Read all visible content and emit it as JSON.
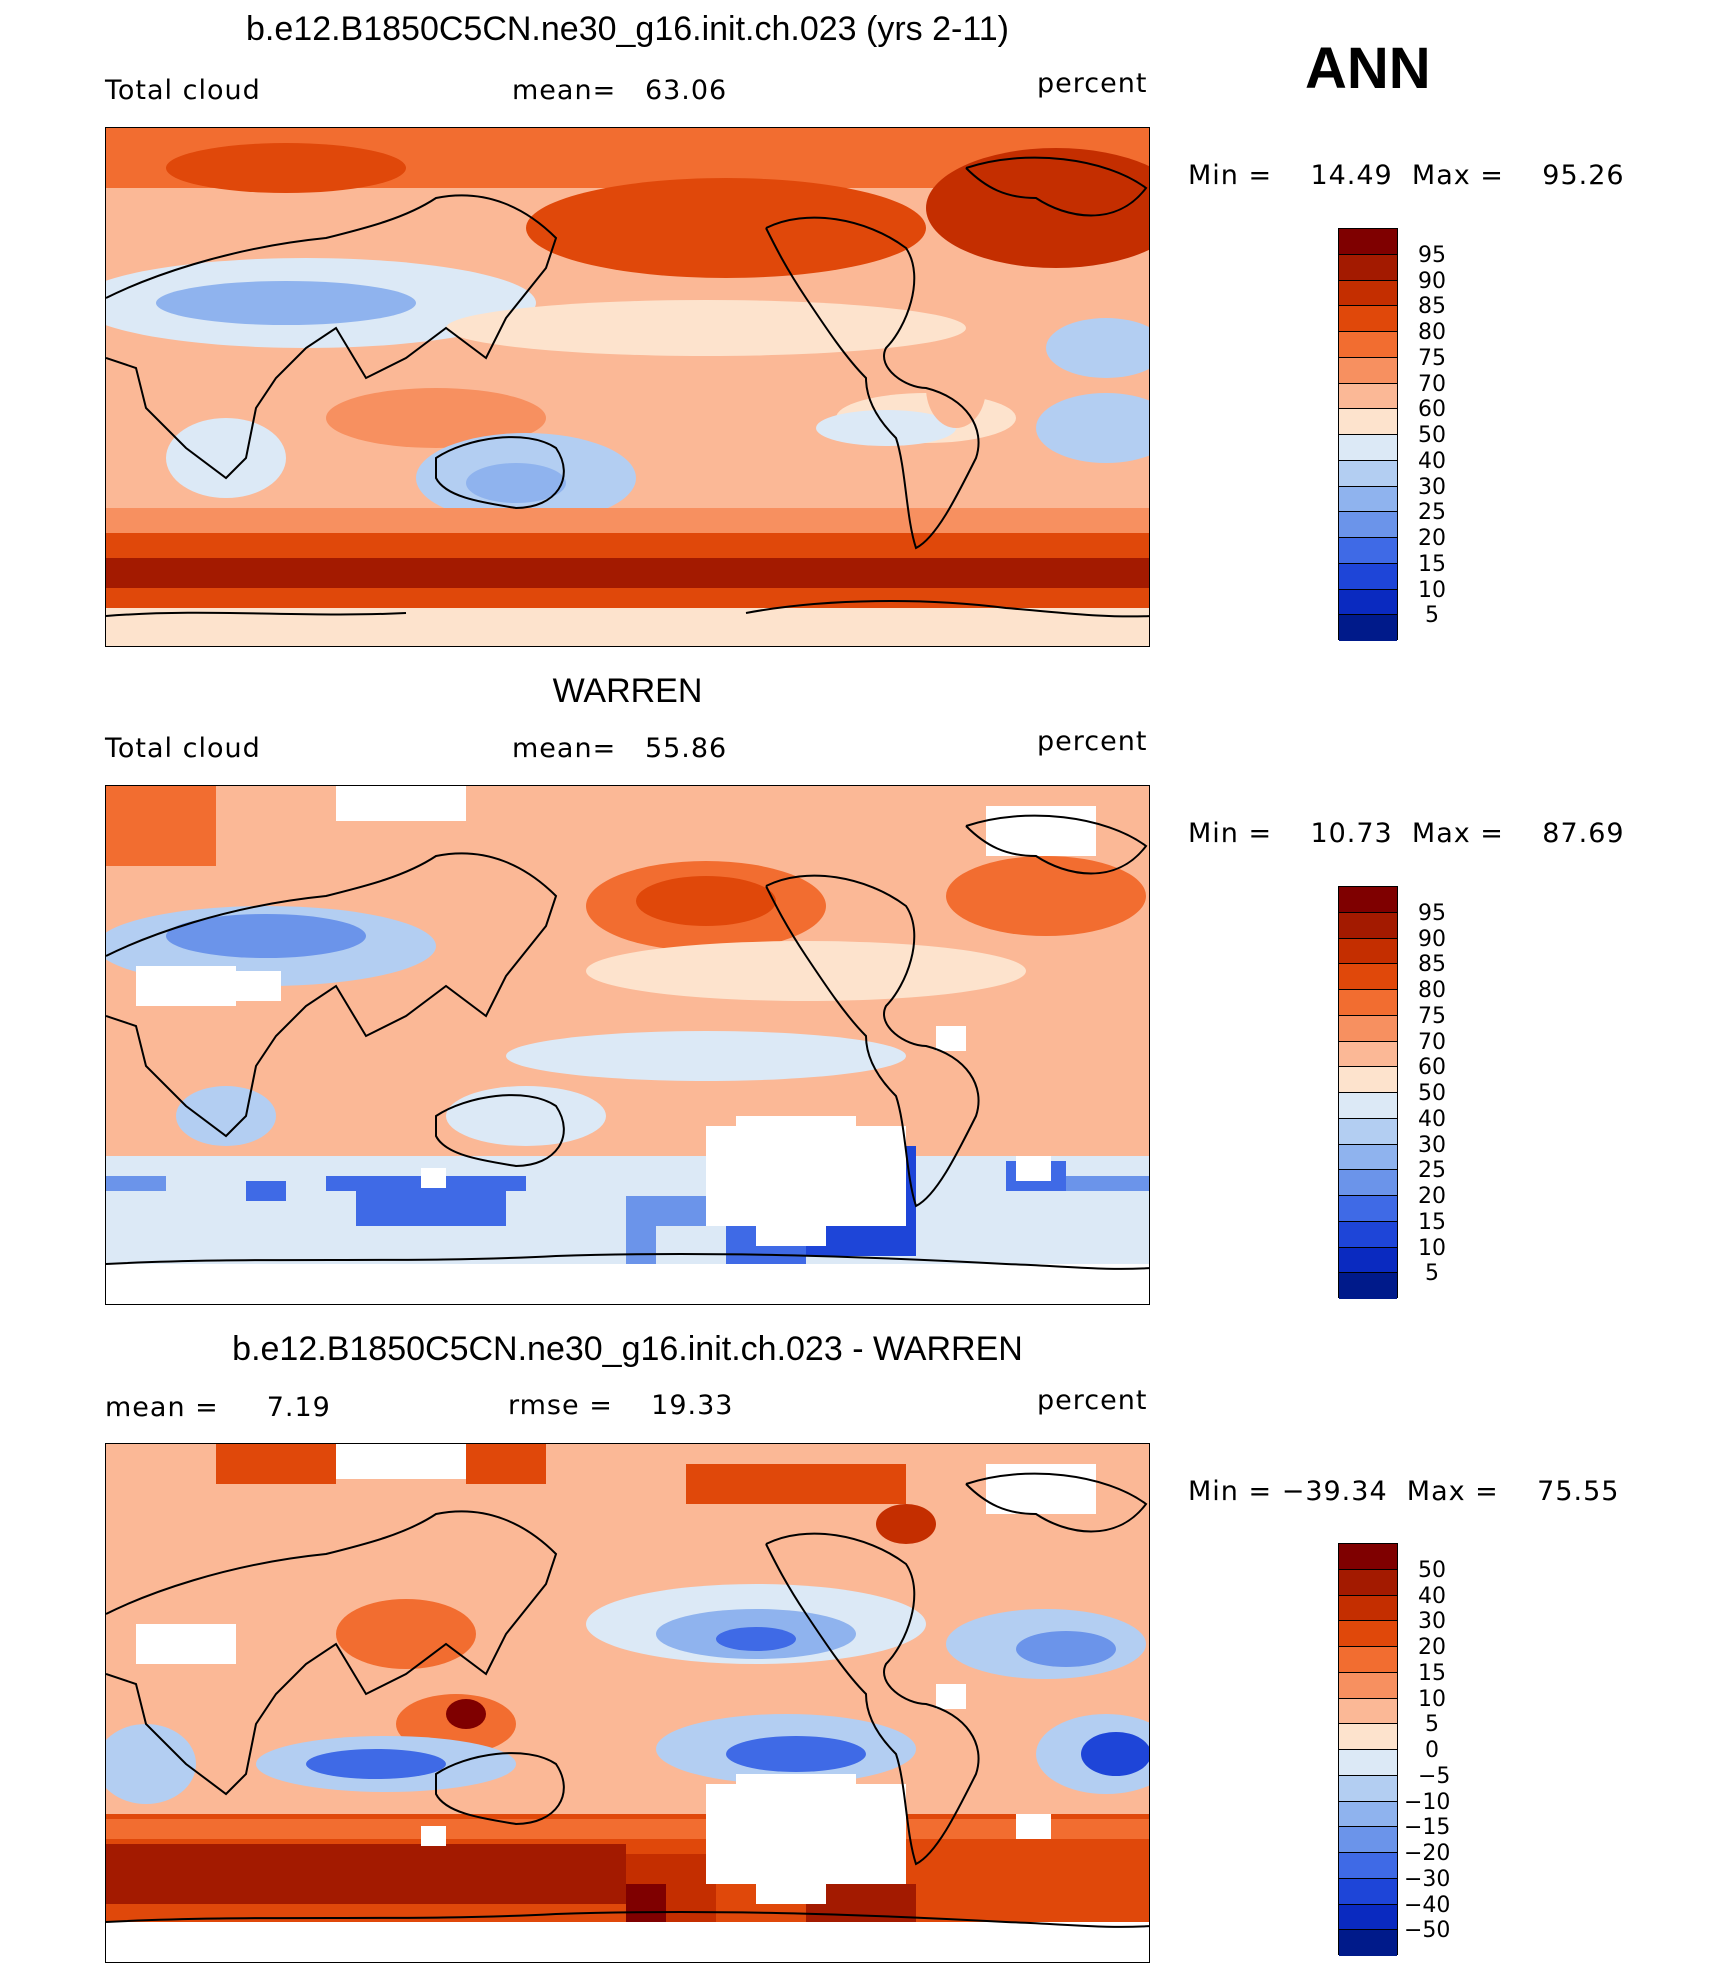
{
  "season": "ANN",
  "panels": [
    {
      "id": "model",
      "title": "b.e12.B1850C5CN.ne30_g16.init.ch.023 (yrs 2-11)",
      "left_label": "Total cloud",
      "center_label": "mean=   63.06",
      "units": "percent",
      "stats": "Min =    14.49  Max =    95.26",
      "colorbar_levels": [
        "95",
        "90",
        "85",
        "80",
        "75",
        "70",
        "60",
        "50",
        "40",
        "30",
        "25",
        "20",
        "15",
        "10",
        "5"
      ]
    },
    {
      "id": "obs",
      "title": "WARREN",
      "left_label": "Total cloud",
      "center_label": "mean=   55.86",
      "units": "percent",
      "stats": "Min =    10.73  Max =    87.69",
      "colorbar_levels": [
        "95",
        "90",
        "85",
        "80",
        "75",
        "70",
        "60",
        "50",
        "40",
        "30",
        "25",
        "20",
        "15",
        "10",
        "5"
      ]
    },
    {
      "id": "diff",
      "title": "b.e12.B1850C5CN.ne30_g16.init.ch.023 - WARREN",
      "left_label": "mean =     7.19",
      "center_label": "rmse =    19.33",
      "units": "percent",
      "stats": "Min = −39.34  Max =    75.55",
      "colorbar_levels": [
        "50",
        "40",
        "30",
        "20",
        "15",
        "10",
        "5",
        "0",
        "−5",
        "−10",
        "−15",
        "−20",
        "−30",
        "−40",
        "−50"
      ]
    }
  ],
  "colors": {
    "abs_scale": [
      "#7f0000",
      "#a31a00",
      "#c42e00",
      "#e0480a",
      "#f26d30",
      "#f79060",
      "#fbb896",
      "#fde3cd",
      "#dce9f6",
      "#b3cef2",
      "#8fb3ee",
      "#6b94ea",
      "#3f6ae6",
      "#1e45d8",
      "#0a2ac0",
      "#001a8a"
    ],
    "diff_scale": [
      "#7f0000",
      "#a31a00",
      "#c42e00",
      "#e0480a",
      "#f26d30",
      "#f79060",
      "#fbb896",
      "#fde3cd",
      "#dce9f6",
      "#b3cef2",
      "#8fb3ee",
      "#6b94ea",
      "#3f6ae6",
      "#1e45d8",
      "#0a2ac0",
      "#001a8a"
    ]
  }
}
